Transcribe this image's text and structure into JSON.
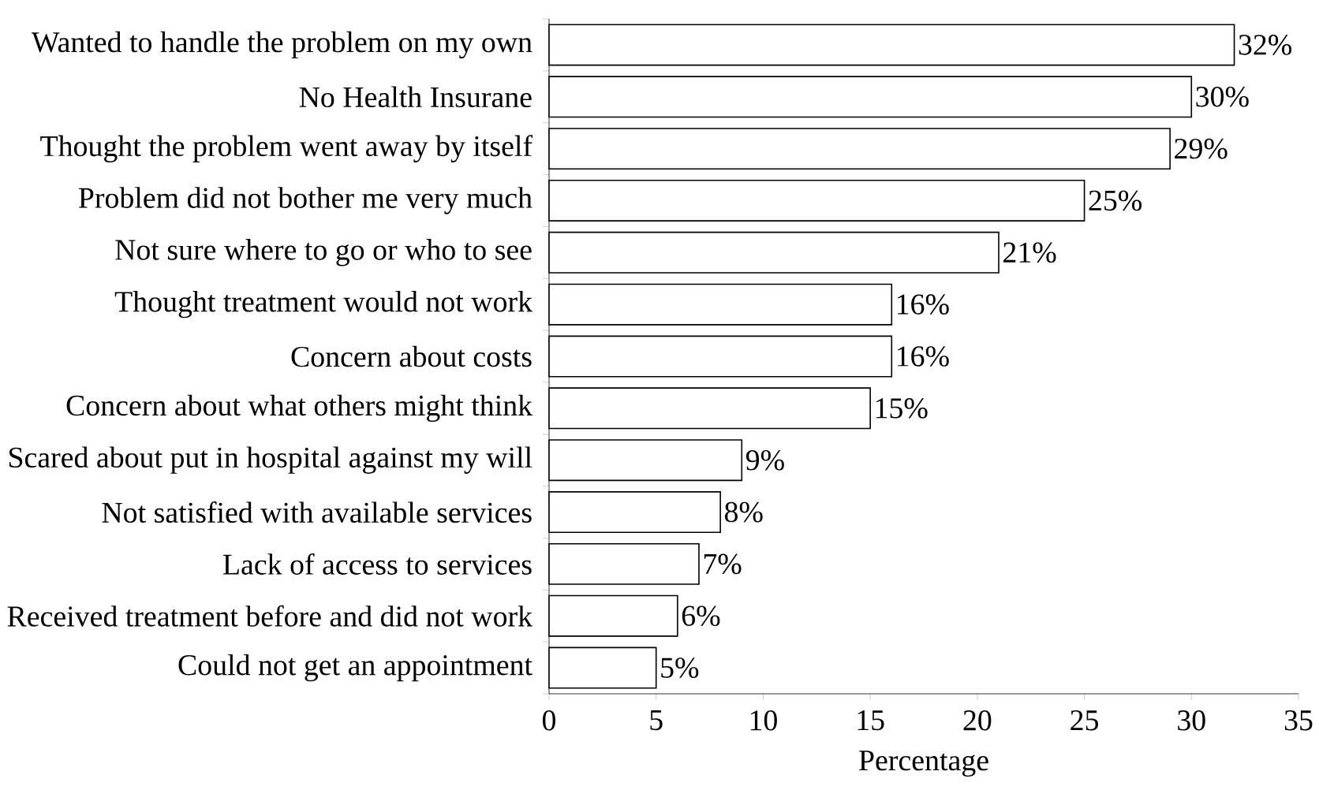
{
  "chart_data": {
    "type": "bar",
    "orientation": "horizontal",
    "xlabel": "Percentage",
    "categories": [
      "Wanted to handle the problem on my own",
      "No Health Insurane",
      "Thought the problem went away by itself",
      "Problem did not bother me very much",
      "Not sure where to go or who to see",
      "Thought treatment would not work",
      "Concern about costs",
      "Concern about what others might think",
      "Scared about put in hospital against my will",
      "Not satisfied with available services",
      "Lack of access to services",
      "Received treatment before and did not work",
      "Could not get an appointment"
    ],
    "values": [
      32,
      30,
      29,
      25,
      21,
      16,
      16,
      15,
      9,
      8,
      7,
      6,
      5
    ],
    "value_labels": [
      "32%",
      "30%",
      "29%",
      "25%",
      "21%",
      "16%",
      "16%",
      "15%",
      "9%",
      "8%",
      "7%",
      "6%",
      "5%"
    ],
    "color": "#ffffff",
    "xlim": [
      0,
      35
    ],
    "xticks": [
      0,
      5,
      10,
      15,
      20,
      25,
      30,
      35
    ]
  }
}
